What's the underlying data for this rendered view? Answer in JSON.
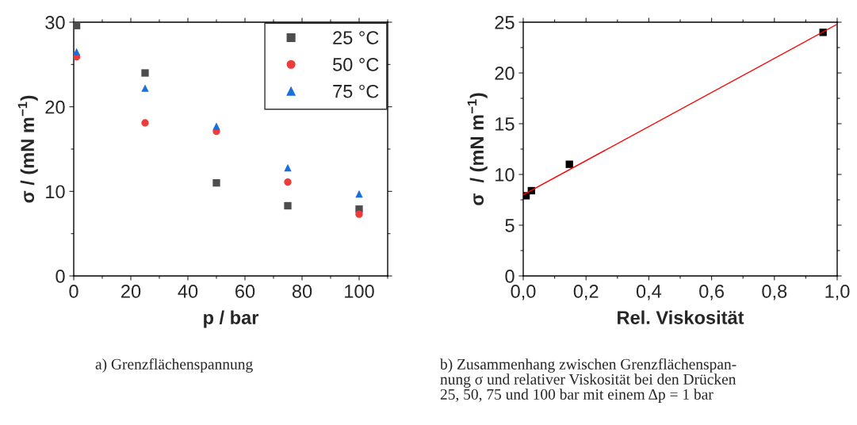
{
  "chart_data": [
    {
      "type": "scatter",
      "xlabel": "p / bar",
      "ylabel": "σ / (mN m$^{−1}$)",
      "xlim": [
        0,
        110
      ],
      "ylim": [
        0,
        30
      ],
      "xticks": [
        0,
        20,
        40,
        60,
        80,
        100
      ],
      "yticks": [
        0,
        10,
        20,
        30
      ],
      "legend": "top right",
      "grid": false,
      "series": [
        {
          "name": "25 °C",
          "color": "#4d4d4d",
          "marker": "square",
          "x": [
            1,
            25,
            50,
            75,
            100
          ],
          "values": [
            29.6,
            24.0,
            11.0,
            8.3,
            7.9
          ]
        },
        {
          "name": "50 °C",
          "color": "#ee3b3b",
          "marker": "circle",
          "x": [
            1,
            25,
            50,
            75,
            100
          ],
          "values": [
            25.9,
            18.1,
            17.1,
            11.1,
            7.3
          ]
        },
        {
          "name": "75 °C",
          "color": "#1a6fdf",
          "marker": "triangle",
          "x": [
            1,
            25,
            50,
            75,
            100
          ],
          "values": [
            26.5,
            22.2,
            17.7,
            12.8,
            9.7
          ]
        }
      ],
      "annotations": [
        "a) Grenzflächenspannung"
      ]
    },
    {
      "type": "scatter",
      "xlabel": "Rel. Viskosität",
      "ylabel": "σ  / (mN m$^{−1}$)",
      "xlim": [
        0,
        1.0
      ],
      "ylim": [
        0,
        25
      ],
      "xticks": [
        {
          "value": 0,
          "label": "0,0"
        },
        {
          "value": 0.2,
          "label": "0,2"
        },
        {
          "value": 0.4,
          "label": "0,4"
        },
        {
          "value": 0.6,
          "label": "0,6"
        },
        {
          "value": 0.8,
          "label": "0,8"
        },
        {
          "value": 1.0,
          "label": "1,0"
        }
      ],
      "yticks": [
        0,
        5,
        10,
        15,
        20,
        25
      ],
      "grid": false,
      "series": [
        {
          "color": "#000000",
          "marker": "square",
          "x": [
            0.009,
            0.026,
            0.147,
            0.955
          ],
          "values": [
            7.9,
            8.4,
            11.0,
            24.0
          ]
        },
        {
          "type": "line",
          "color": "#ff0000",
          "marker": "none",
          "line_style": "solid",
          "x": [
            0,
            1.0
          ],
          "values": [
            8.0,
            24.8
          ]
        }
      ],
      "annotations": [
        "b) Zusammenhang zwischen Grenzflächenspan-\nnung σ und relativer Viskosität bei den Drücken\n25, 50, 75 und 100 bar mit einem Δp = 1 bar"
      ]
    }
  ]
}
